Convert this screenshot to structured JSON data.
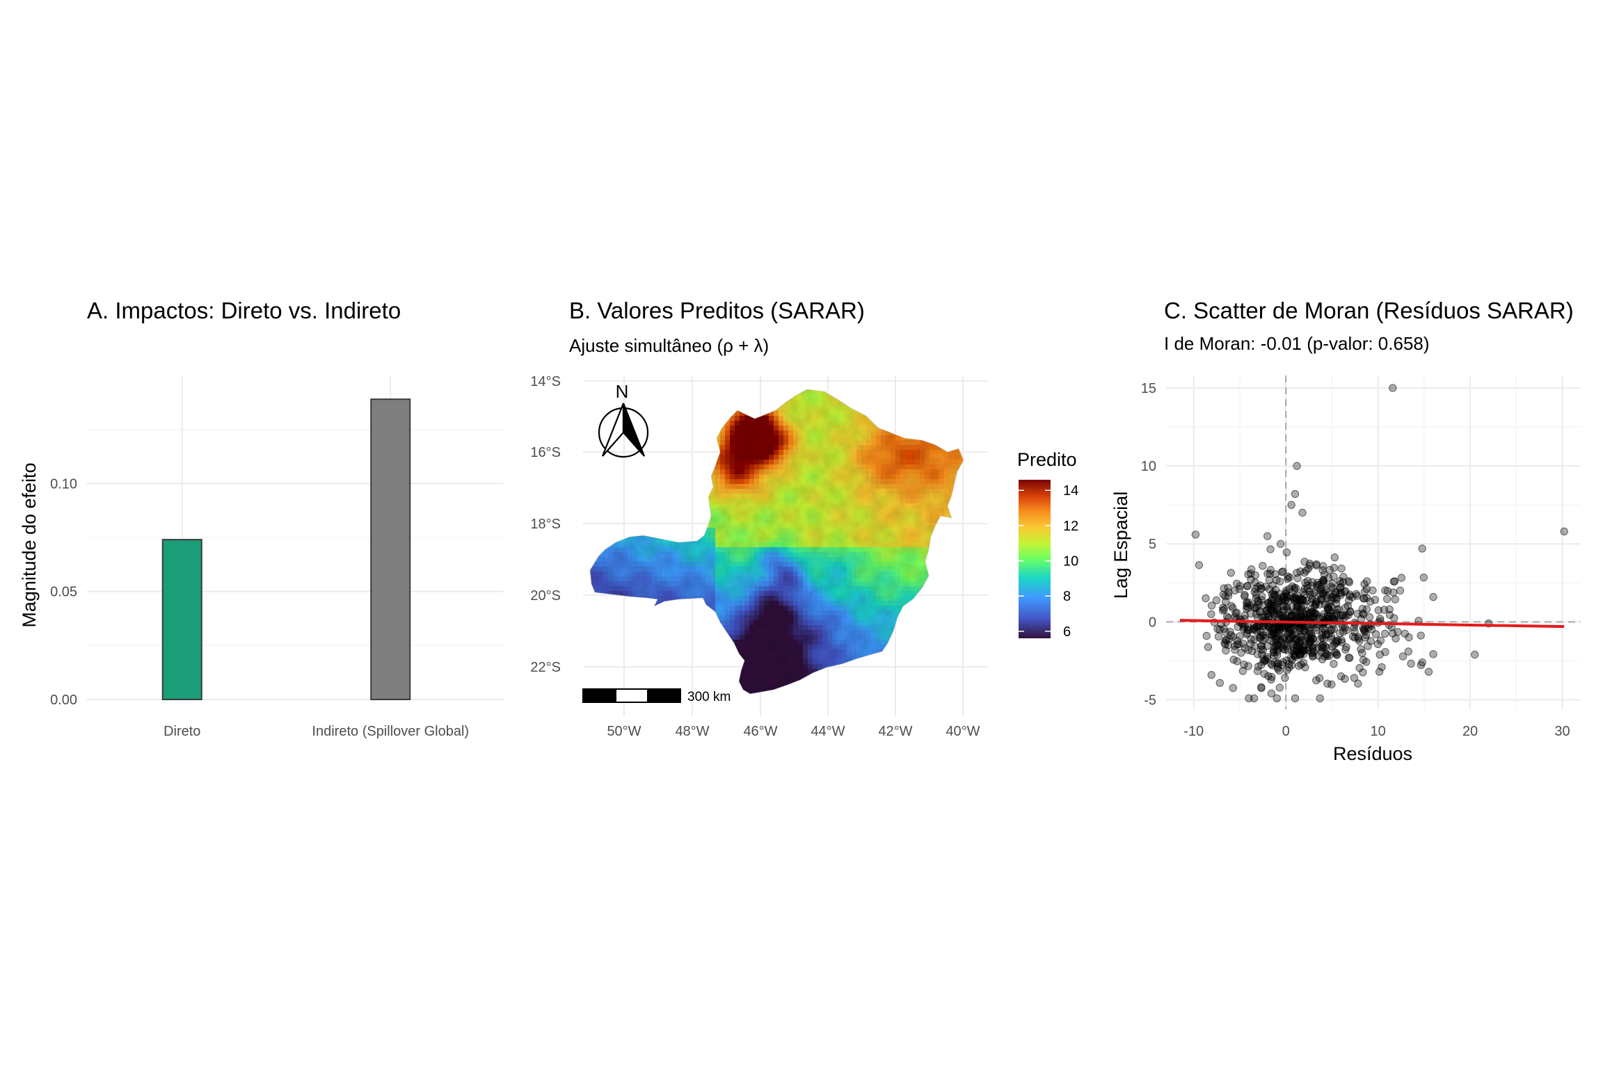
{
  "chart_data": [
    {
      "type": "bar",
      "title": "A. Impactos: Direto vs. Indireto",
      "xlabel": "",
      "ylabel": "Magnitude do efeito",
      "categories": [
        "Direto",
        "Indireto (Spillover Global)"
      ],
      "values": [
        0.074,
        0.139
      ],
      "colors": [
        "#1b9e77",
        "#7f7f7f"
      ],
      "ylim": [
        0,
        0.15
      ],
      "yticks": [
        "0.00",
        "0.05",
        "0.10"
      ],
      "grid": true
    },
    {
      "type": "heatmap",
      "title": "B. Valores Preditos (SARAR)",
      "subtitle": "Ajuste simultâneo (ρ + λ)",
      "lon_ticks": [
        "50°W",
        "48°W",
        "46°W",
        "44°W",
        "42°W",
        "40°W"
      ],
      "lat_ticks": [
        "14°S",
        "16°S",
        "18°S",
        "20°S",
        "22°S"
      ],
      "legend_title": "Predito",
      "legend_ticks": [
        "14",
        "12",
        "10",
        "8",
        "6"
      ],
      "legend_range": [
        5.6,
        14.6
      ],
      "north_arrow_label": "N",
      "scale_bar_label": "300 km",
      "grid": true
    },
    {
      "type": "scatter",
      "title": "C. Scatter de Moran (Resíduos SARAR)",
      "subtitle": "I de Moran: -0.01 (p-valor: 0.658)",
      "xlabel": "Resíduos",
      "ylabel": "Lag Espacial",
      "xticks": [
        "-10",
        "0",
        "10",
        "20",
        "30"
      ],
      "yticks": [
        "15",
        "10",
        "5",
        "0",
        "-5"
      ],
      "xlim": [
        -13,
        32
      ],
      "ylim": [
        -5.6,
        15.8
      ],
      "fit_line": {
        "x0": -11.5,
        "y0": 0.1,
        "x1": 30.2,
        "y1": -0.3,
        "color": "#e41a1c"
      },
      "reference_lines": {
        "x": 0,
        "y": 0
      },
      "point_color": "#000000",
      "grid": true
    }
  ]
}
